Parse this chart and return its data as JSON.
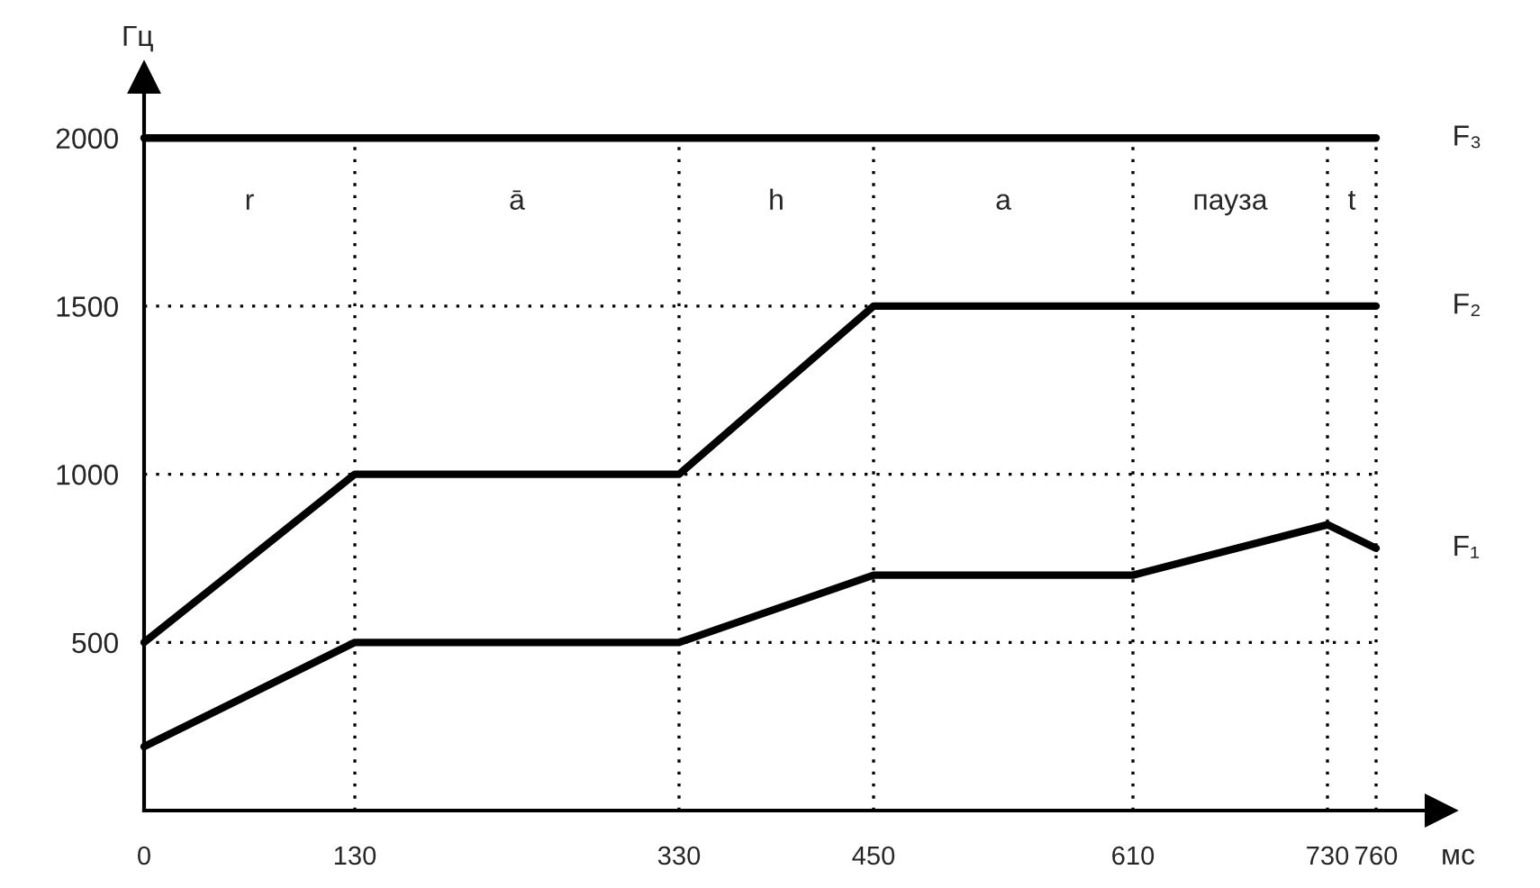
{
  "chart_data": {
    "type": "line",
    "xlabel": "мс",
    "ylabel": "Гц",
    "series": [
      {
        "name": "F₃",
        "color": "#000000",
        "x": [
          0,
          760
        ],
        "values": [
          2000,
          2000
        ]
      },
      {
        "name": "F₂",
        "color": "#000000",
        "x": [
          0,
          130,
          330,
          450,
          760
        ],
        "values": [
          500,
          1000,
          1000,
          1500,
          1500
        ]
      },
      {
        "name": "F₁",
        "color": "#000000",
        "x": [
          0,
          130,
          330,
          450,
          610,
          730,
          760
        ],
        "values": [
          190,
          500,
          500,
          700,
          700,
          850,
          780
        ]
      }
    ],
    "annotations": [
      "r",
      "ā",
      "h",
      "a",
      "пауза",
      "t"
    ],
    "xlim": [
      0,
      800
    ],
    "ylim": [
      0,
      2180
    ],
    "xticks": [
      0,
      130,
      330,
      450,
      610,
      730,
      760
    ],
    "yticks": [
      500,
      1000,
      1500,
      2000
    ],
    "grid": true,
    "legend": false,
    "marker": "none",
    "line_style": "solid"
  }
}
